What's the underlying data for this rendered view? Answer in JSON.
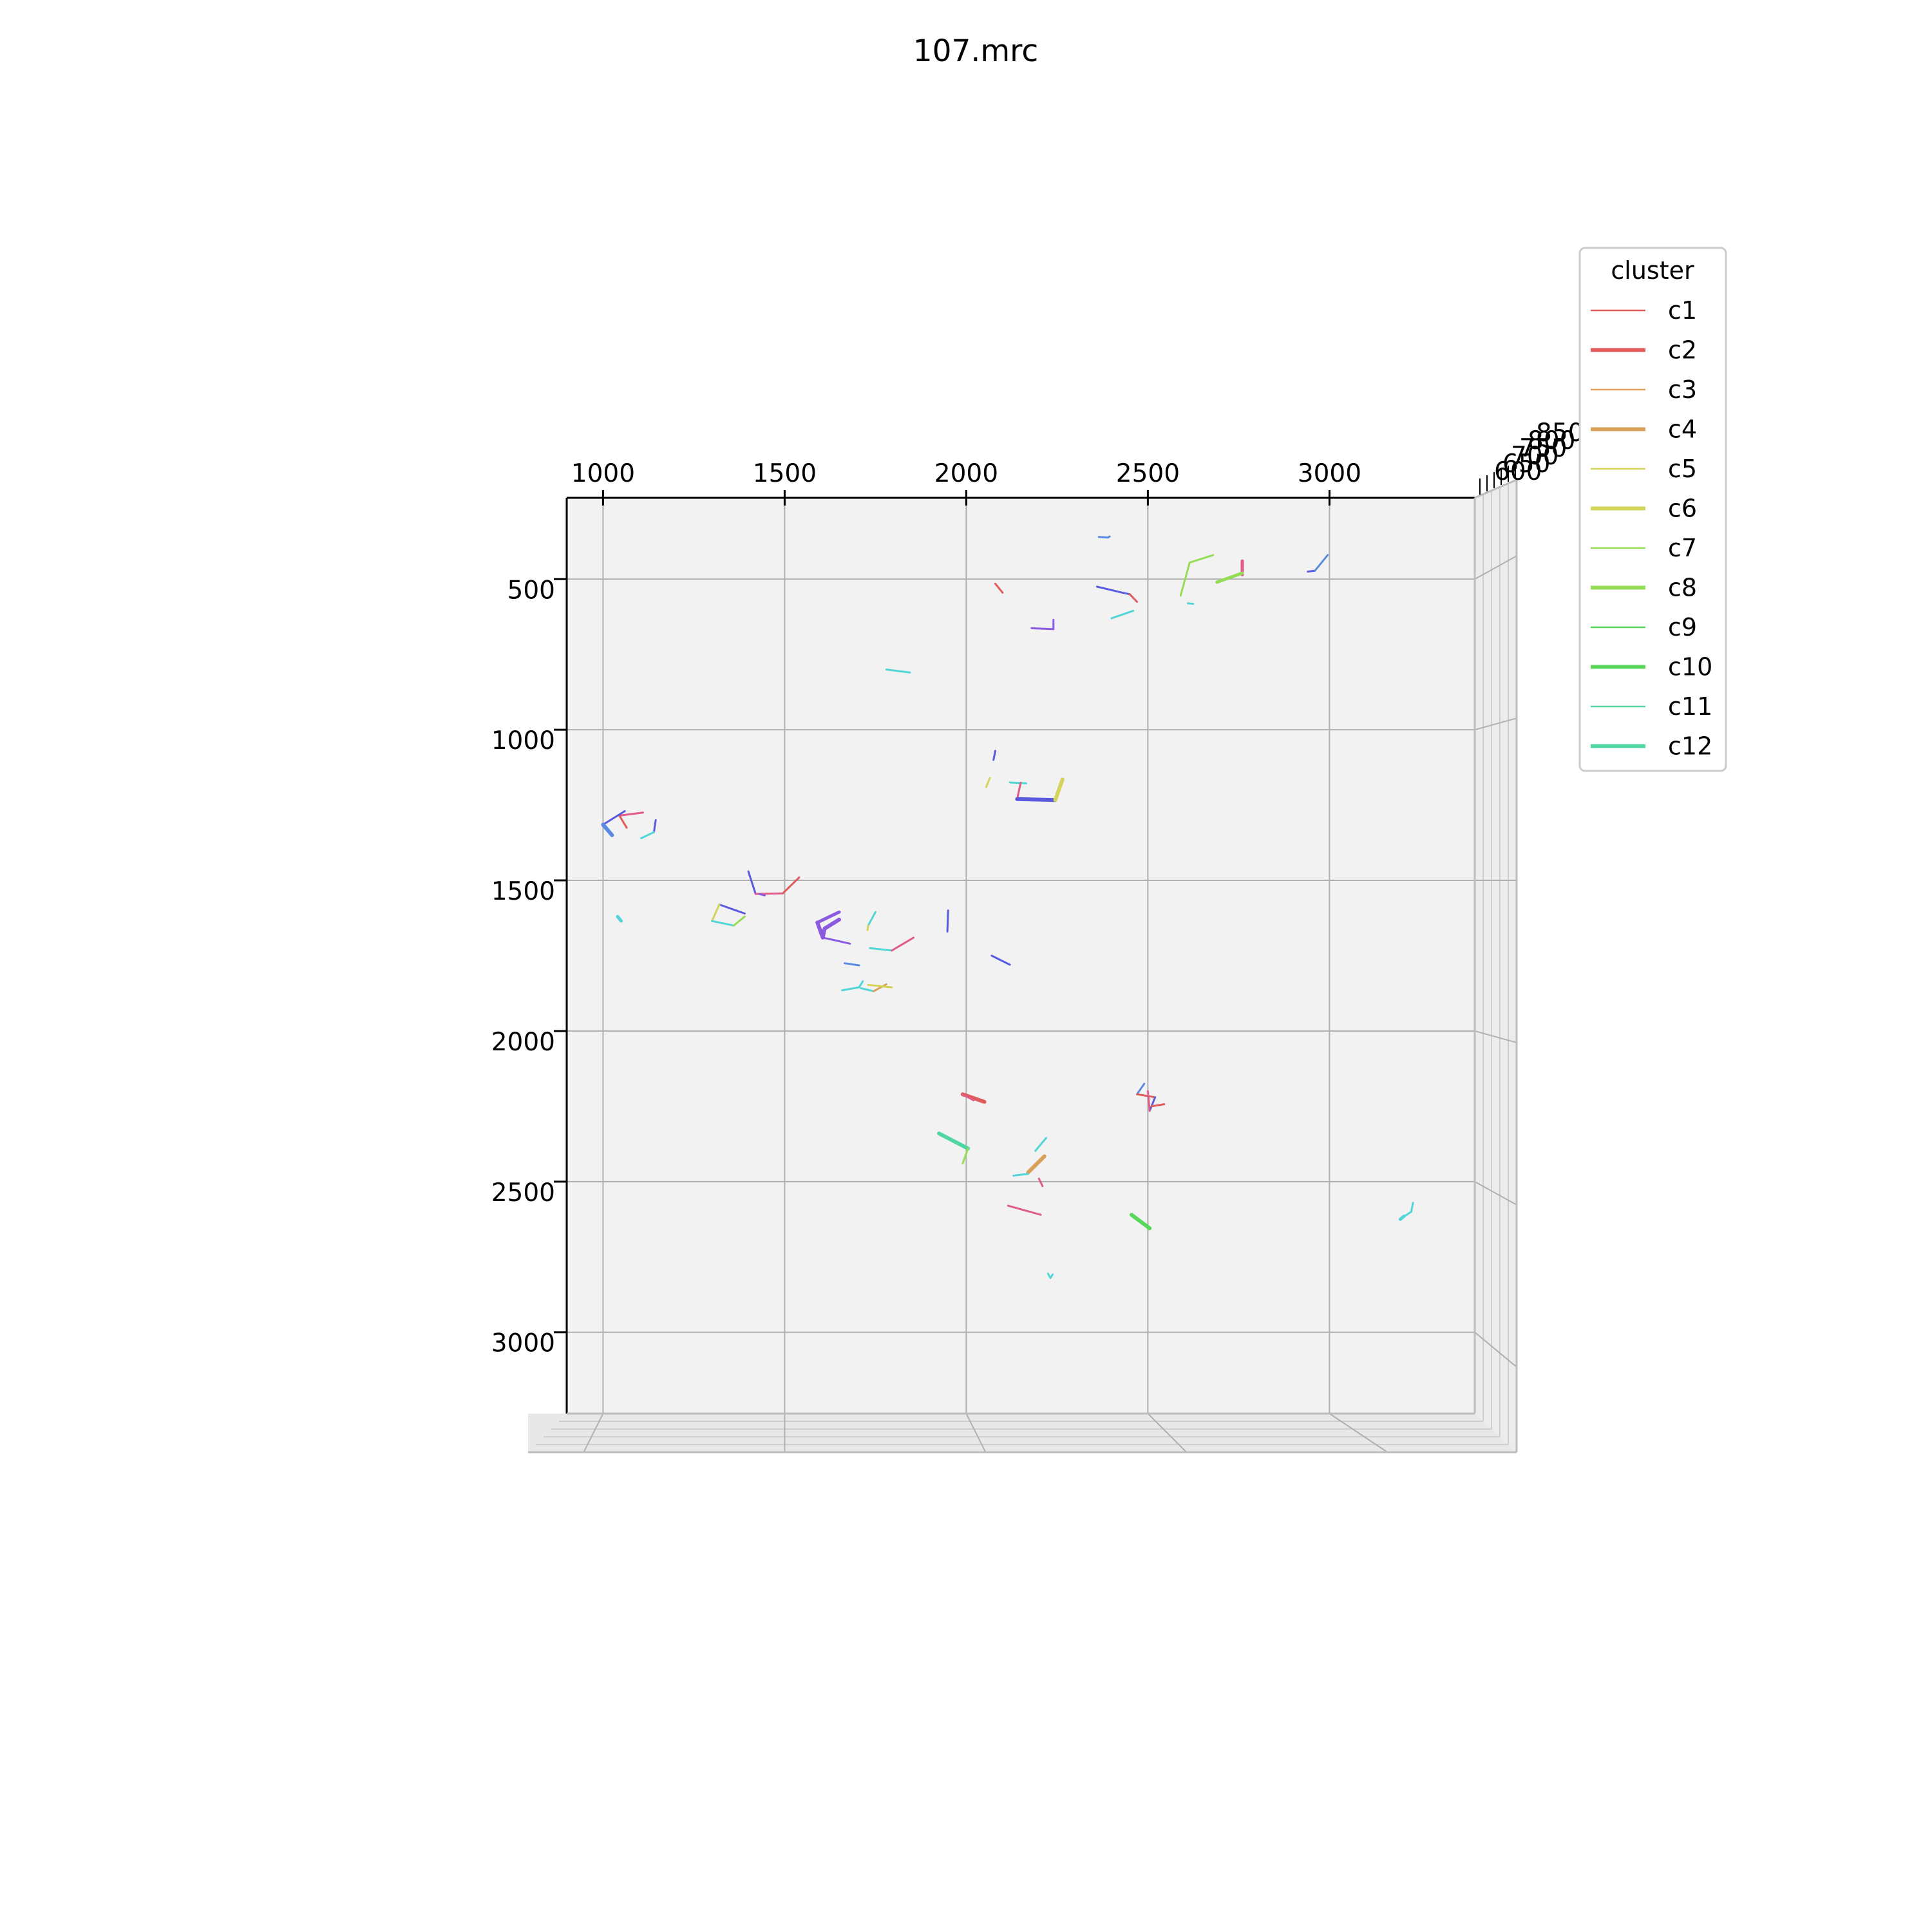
{
  "chart_data": {
    "type": "line",
    "title": "107.mrc",
    "projection": "3d",
    "grid": true,
    "xlim": [
      900,
      3400
    ],
    "ylim": [
      230,
      3270
    ],
    "x_ticks": [
      "1000",
      "1500",
      "2000",
      "2500",
      "3000"
    ],
    "y_ticks": [
      "500",
      "1000",
      "1500",
      "2000",
      "2500",
      "3000"
    ],
    "z_ticks": [
      "850",
      "800",
      "750",
      "700",
      "650",
      "600"
    ],
    "legend": {
      "title": "cluster",
      "placement": "upper-right",
      "entries": [
        {
          "name": "c1",
          "color": "#e05a5a",
          "weight": "thin"
        },
        {
          "name": "c2",
          "color": "#e05a5a",
          "weight": "thick"
        },
        {
          "name": "c3",
          "color": "#e0a05a",
          "weight": "thin"
        },
        {
          "name": "c4",
          "color": "#d9a05a",
          "weight": "thick"
        },
        {
          "name": "c5",
          "color": "#d4d45a",
          "weight": "thin"
        },
        {
          "name": "c6",
          "color": "#d4d45a",
          "weight": "thick"
        },
        {
          "name": "c7",
          "color": "#95dd55",
          "weight": "thin"
        },
        {
          "name": "c8",
          "color": "#95dd55",
          "weight": "thick"
        },
        {
          "name": "c9",
          "color": "#5ad65a",
          "weight": "thin"
        },
        {
          "name": "c10",
          "color": "#5ad65a",
          "weight": "thick"
        },
        {
          "name": "c11",
          "color": "#50d6a0",
          "weight": "thin"
        },
        {
          "name": "c12",
          "color": "#50d6a0",
          "weight": "thick"
        }
      ]
    },
    "segments": [
      {
        "c": "#5a8ae0",
        "w": 3,
        "p": [
          [
            2365,
            360
          ],
          [
            2390,
            362
          ],
          [
            2395,
            358
          ]
        ]
      },
      {
        "c": "#95dd55",
        "w": 3,
        "p": [
          [
            2590,
            555
          ],
          [
            2615,
            445
          ],
          [
            2680,
            420
          ]
        ]
      },
      {
        "c": "#e05a8a",
        "w": 5,
        "p": [
          [
            2760,
            440
          ],
          [
            2760,
            485
          ]
        ]
      },
      {
        "c": "#95dd55",
        "w": 5,
        "p": [
          [
            2690,
            510
          ],
          [
            2760,
            480
          ]
        ]
      },
      {
        "c": "#5a5ae0",
        "w": 3,
        "p": [
          [
            2940,
            475
          ],
          [
            2960,
            472
          ]
        ]
      },
      {
        "c": "#5a8ae0",
        "w": 3,
        "p": [
          [
            2960,
            472
          ],
          [
            2995,
            420
          ]
        ]
      },
      {
        "c": "#e05a5a",
        "w": 3,
        "p": [
          [
            2080,
            515
          ],
          [
            2100,
            545
          ]
        ]
      },
      {
        "c": "#5a5ae0",
        "w": 3,
        "p": [
          [
            2360,
            525
          ],
          [
            2430,
            545
          ],
          [
            2450,
            550
          ]
        ]
      },
      {
        "c": "#e05a5a",
        "w": 3,
        "p": [
          [
            2450,
            550
          ],
          [
            2470,
            575
          ]
        ]
      },
      {
        "c": "#50d6d6",
        "w": 3,
        "p": [
          [
            2610,
            580
          ],
          [
            2625,
            582
          ]
        ]
      },
      {
        "c": "#50d6d6",
        "w": 3,
        "p": [
          [
            2400,
            630
          ],
          [
            2460,
            605
          ]
        ]
      },
      {
        "c": "#8a5ae0",
        "w": 3,
        "p": [
          [
            2180,
            663
          ],
          [
            2240,
            666
          ],
          [
            2240,
            635
          ]
        ]
      },
      {
        "c": "#50d6d6",
        "w": 3,
        "p": [
          [
            1780,
            800
          ],
          [
            1845,
            810
          ]
        ]
      },
      {
        "c": "#5a5ae0",
        "w": 3,
        "p": [
          [
            2080,
            1070
          ],
          [
            2075,
            1100
          ]
        ]
      },
      {
        "c": "#d4d45a",
        "w": 3,
        "p": [
          [
            2065,
            1160
          ],
          [
            2055,
            1190
          ]
        ]
      },
      {
        "c": "#50d6d6",
        "w": 3,
        "p": [
          [
            2120,
            1175
          ],
          [
            2165,
            1178
          ]
        ]
      },
      {
        "c": "#e05a8a",
        "w": 3,
        "p": [
          [
            2150,
            1176
          ],
          [
            2140,
            1230
          ]
        ]
      },
      {
        "c": "#5a5ae0",
        "w": 6,
        "p": [
          [
            2140,
            1230
          ],
          [
            2245,
            1233
          ]
        ]
      },
      {
        "c": "#d4d45a",
        "w": 6,
        "p": [
          [
            2245,
            1233
          ],
          [
            2265,
            1165
          ]
        ]
      },
      {
        "c": "#e05a8a",
        "w": 3,
        "p": [
          [
            1045,
            1285
          ],
          [
            1110,
            1275
          ]
        ]
      },
      {
        "c": "#e05a5a",
        "w": 3,
        "p": [
          [
            1045,
            1285
          ],
          [
            1065,
            1325
          ]
        ]
      },
      {
        "c": "#5a5ae0",
        "w": 3,
        "p": [
          [
            1060,
            1270
          ],
          [
            1000,
            1315
          ]
        ]
      },
      {
        "c": "#5a8ae0",
        "w": 6,
        "p": [
          [
            1000,
            1315
          ],
          [
            1025,
            1350
          ]
        ]
      },
      {
        "c": "#5a5ae0",
        "w": 3,
        "p": [
          [
            1145,
            1300
          ],
          [
            1140,
            1340
          ]
        ]
      },
      {
        "c": "#50d6d6",
        "w": 3,
        "p": [
          [
            1140,
            1340
          ],
          [
            1105,
            1360
          ]
        ]
      },
      {
        "c": "#5a5ae0",
        "w": 3,
        "p": [
          [
            1400,
            1470
          ],
          [
            1420,
            1545
          ]
        ]
      },
      {
        "c": "#e05a8a",
        "w": 3,
        "p": [
          [
            1420,
            1545
          ],
          [
            1495,
            1543
          ]
        ]
      },
      {
        "c": "#e05a5a",
        "w": 3,
        "p": [
          [
            1495,
            1543
          ],
          [
            1540,
            1490
          ]
        ]
      },
      {
        "c": "#8a5ae0",
        "w": 3,
        "p": [
          [
            1430,
            1545
          ],
          [
            1445,
            1550
          ]
        ]
      },
      {
        "c": "#5a5ae0",
        "w": 3,
        "p": [
          [
            1320,
            1580
          ],
          [
            1390,
            1610
          ]
        ]
      },
      {
        "c": "#d4d45a",
        "w": 3,
        "p": [
          [
            1320,
            1580
          ],
          [
            1300,
            1635
          ]
        ]
      },
      {
        "c": "#50d6d6",
        "w": 3,
        "p": [
          [
            1300,
            1635
          ],
          [
            1360,
            1650
          ]
        ]
      },
      {
        "c": "#95dd55",
        "w": 3,
        "p": [
          [
            1360,
            1650
          ],
          [
            1390,
            1620
          ]
        ]
      },
      {
        "c": "#50d6d6",
        "w": 5,
        "p": [
          [
            1040,
            1620
          ],
          [
            1050,
            1635
          ]
        ]
      },
      {
        "c": "#8a5ae0",
        "w": 6,
        "p": [
          [
            1590,
            1640
          ],
          [
            1605,
            1690
          ],
          [
            1610,
            1660
          ],
          [
            1650,
            1630
          ]
        ]
      },
      {
        "c": "#8a5ae0",
        "w": 5,
        "p": [
          [
            1590,
            1640
          ],
          [
            1650,
            1605
          ]
        ]
      },
      {
        "c": "#8a5ae0",
        "w": 3,
        "p": [
          [
            1605,
            1690
          ],
          [
            1680,
            1710
          ]
        ]
      },
      {
        "c": "#50d6d6",
        "w": 3,
        "p": [
          [
            1750,
            1605
          ],
          [
            1730,
            1650
          ]
        ]
      },
      {
        "c": "#d4d45a",
        "w": 3,
        "p": [
          [
            1730,
            1650
          ],
          [
            1728,
            1665
          ]
        ]
      },
      {
        "c": "#5a5ae0",
        "w": 3,
        "p": [
          [
            1950,
            1600
          ],
          [
            1948,
            1670
          ]
        ]
      },
      {
        "c": "#50d6d6",
        "w": 3,
        "p": [
          [
            1735,
            1725
          ],
          [
            1795,
            1733
          ]
        ]
      },
      {
        "c": "#e05a8a",
        "w": 3,
        "p": [
          [
            1795,
            1733
          ],
          [
            1855,
            1690
          ]
        ]
      },
      {
        "c": "#5a5ae0",
        "w": 3,
        "p": [
          [
            2070,
            1750
          ],
          [
            2120,
            1780
          ]
        ]
      },
      {
        "c": "#5a8ae0",
        "w": 3,
        "p": [
          [
            1665,
            1775
          ],
          [
            1705,
            1782
          ]
        ]
      },
      {
        "c": "#50d6d6",
        "w": 3,
        "p": [
          [
            1658,
            1865
          ],
          [
            1705,
            1855
          ],
          [
            1715,
            1835
          ]
        ]
      },
      {
        "c": "#50d6d6",
        "w": 3,
        "p": [
          [
            1710,
            1858
          ],
          [
            1745,
            1868
          ]
        ]
      },
      {
        "c": "#d9a05a",
        "w": 3,
        "p": [
          [
            1745,
            1868
          ],
          [
            1780,
            1845
          ]
        ]
      },
      {
        "c": "#d4d45a",
        "w": 3,
        "p": [
          [
            1730,
            1847
          ],
          [
            1795,
            1855
          ]
        ]
      },
      {
        "c": "#e05a5a",
        "w": 6,
        "p": [
          [
            1990,
            2210
          ],
          [
            2050,
            2235
          ]
        ]
      },
      {
        "c": "#e05a8a",
        "w": 3,
        "p": [
          [
            1990,
            2210
          ],
          [
            2020,
            2230
          ]
        ]
      },
      {
        "c": "#5a8ae0",
        "w": 3,
        "p": [
          [
            2490,
            2175
          ],
          [
            2470,
            2210
          ]
        ]
      },
      {
        "c": "#e05a5a",
        "w": 3,
        "p": [
          [
            2470,
            2210
          ],
          [
            2520,
            2220
          ]
        ]
      },
      {
        "c": "#5a5ae0",
        "w": 3,
        "p": [
          [
            2520,
            2220
          ],
          [
            2505,
            2265
          ]
        ]
      },
      {
        "c": "#e05a8a",
        "w": 3,
        "p": [
          [
            2500,
            2200
          ],
          [
            2505,
            2265
          ]
        ]
      },
      {
        "c": "#e05a5a",
        "w": 3,
        "p": [
          [
            2510,
            2250
          ],
          [
            2545,
            2243
          ]
        ]
      },
      {
        "c": "#50d6a0",
        "w": 6,
        "p": [
          [
            1925,
            2340
          ],
          [
            2005,
            2390
          ]
        ]
      },
      {
        "c": "#95dd55",
        "w": 3,
        "p": [
          [
            2005,
            2390
          ],
          [
            1990,
            2440
          ]
        ]
      },
      {
        "c": "#50d6d6",
        "w": 3,
        "p": [
          [
            2190,
            2398
          ],
          [
            2220,
            2355
          ]
        ]
      },
      {
        "c": "#d9a05a",
        "w": 6,
        "p": [
          [
            2170,
            2470
          ],
          [
            2215,
            2416
          ]
        ]
      },
      {
        "c": "#50d6d6",
        "w": 3,
        "p": [
          [
            2130,
            2480
          ],
          [
            2170,
            2474
          ]
        ]
      },
      {
        "c": "#e05a8a",
        "w": 3,
        "p": [
          [
            2200,
            2490
          ],
          [
            2210,
            2515
          ]
        ]
      },
      {
        "c": "#e05a8a",
        "w": 3,
        "p": [
          [
            2115,
            2580
          ],
          [
            2205,
            2610
          ]
        ]
      },
      {
        "c": "#5ad65a",
        "w": 6,
        "p": [
          [
            2455,
            2610
          ],
          [
            2505,
            2655
          ]
        ]
      },
      {
        "c": "#50d6d6",
        "w": 3,
        "p": [
          [
            3230,
            2570
          ],
          [
            3225,
            2600
          ],
          [
            3200,
            2620
          ]
        ]
      },
      {
        "c": "#50d6d6",
        "w": 5,
        "p": [
          [
            3195,
            2625
          ],
          [
            3205,
            2615
          ]
        ]
      },
      {
        "c": "#50d6d6",
        "w": 3,
        "p": [
          [
            2225,
            2805
          ],
          [
            2232,
            2820
          ],
          [
            2238,
            2808
          ]
        ]
      }
    ]
  }
}
